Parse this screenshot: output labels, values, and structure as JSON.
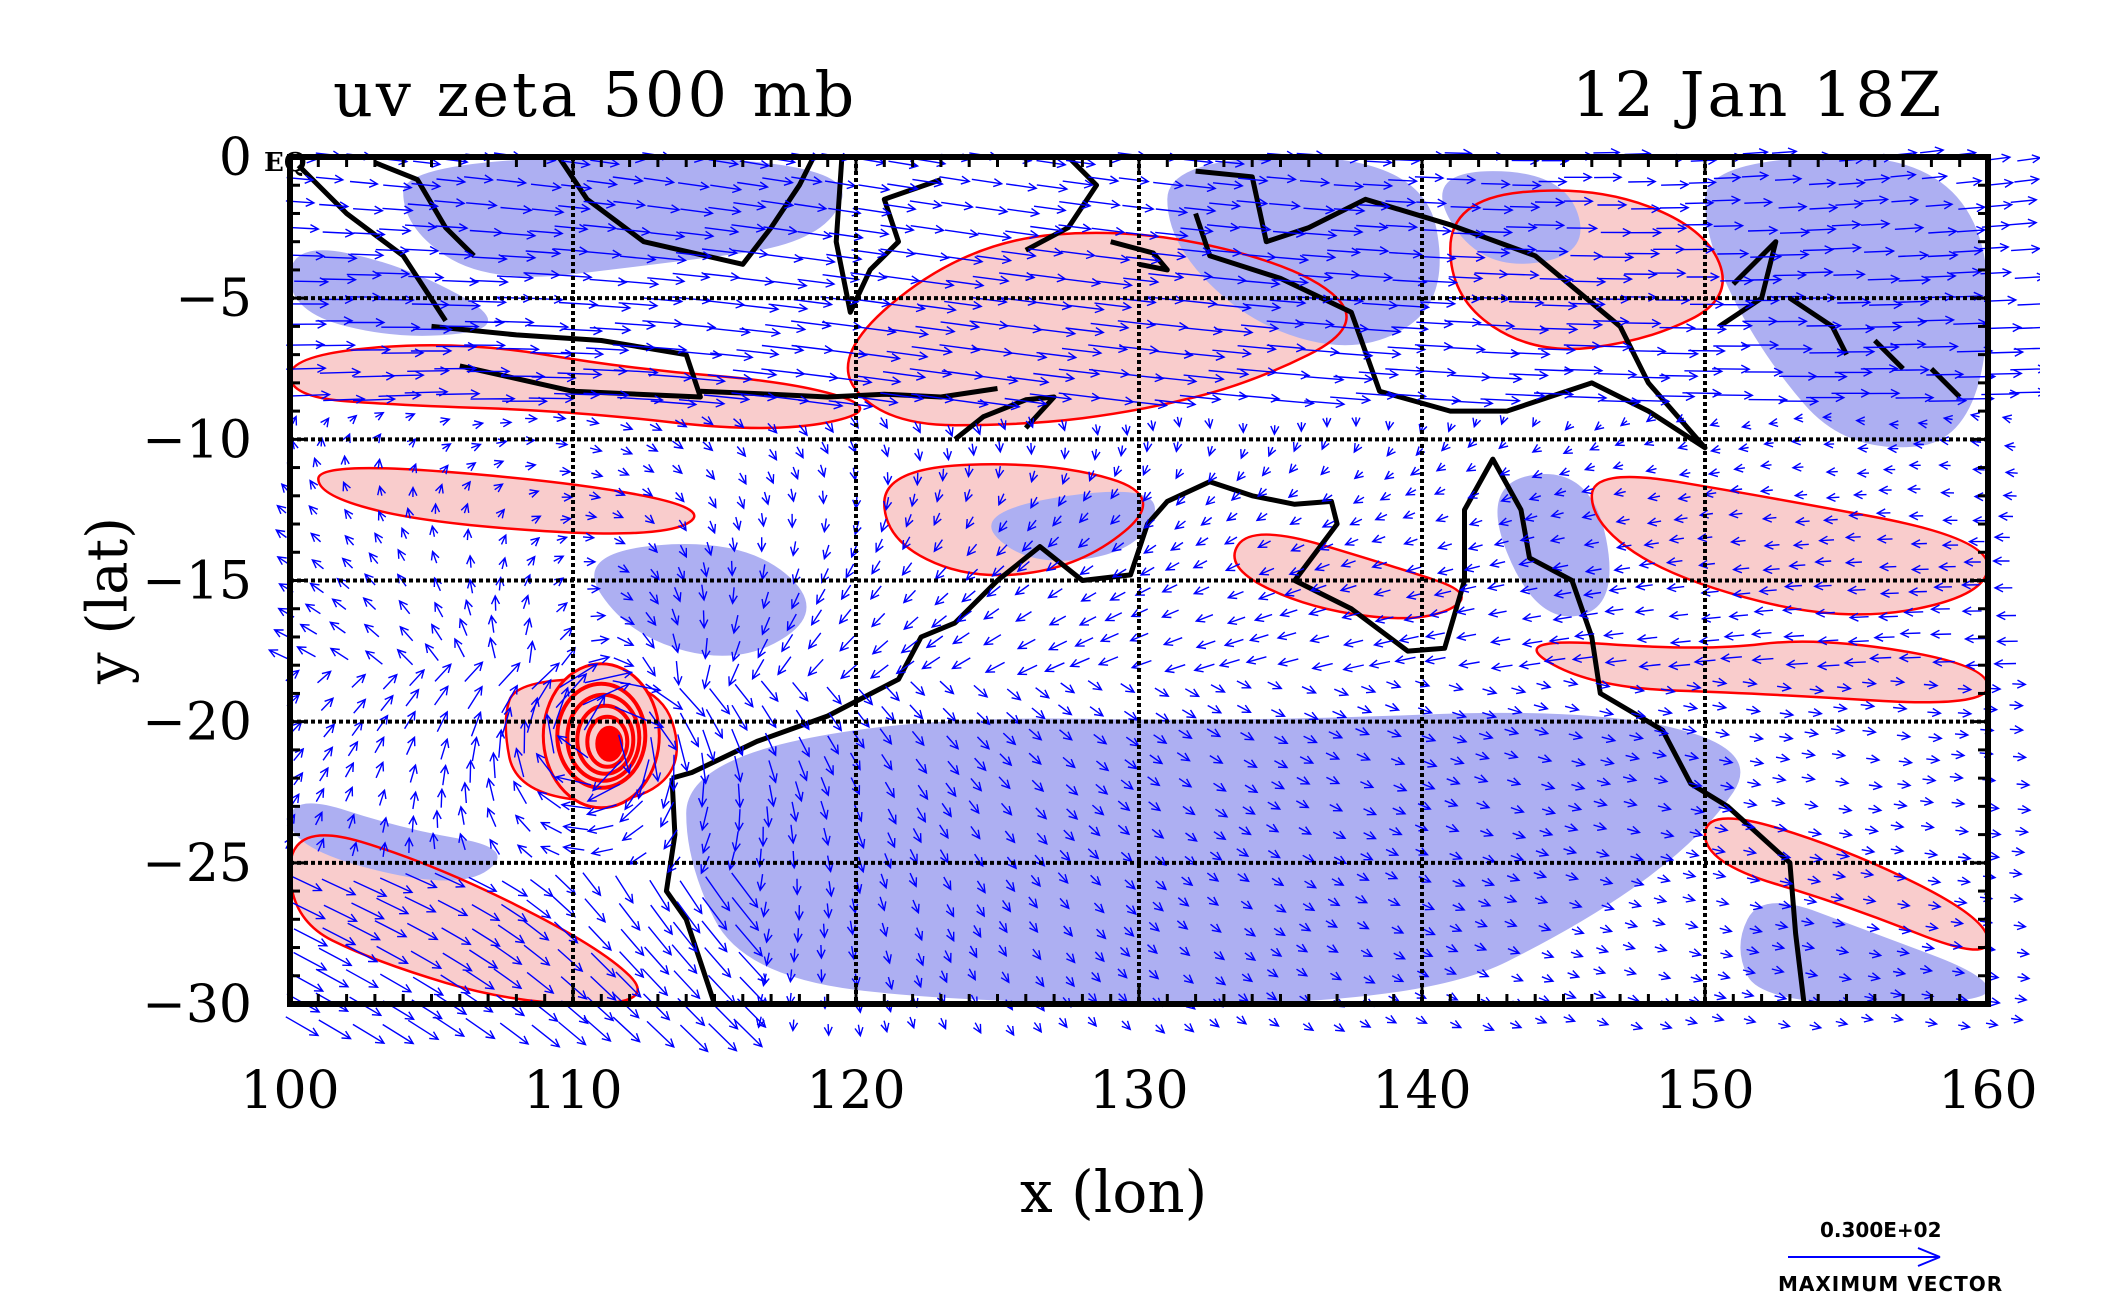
{
  "title_left": "uv zeta 500 mb",
  "title_right": "12 Jan 18Z",
  "equator_label": "EQ",
  "legend": {
    "magnitude_text": "0.300E+02",
    "label_text": "MAXIMUM VECTOR"
  },
  "colors": {
    "positive_fill": "#f9cccc",
    "negative_fill": "#adaff2",
    "contour": "#ff0000",
    "vector": "#0000ff",
    "coast": "#000000"
  },
  "chart_data": {
    "type": "map",
    "xlabel": "x (lon)",
    "ylabel": "y (lat)",
    "xlim": [
      100,
      160
    ],
    "ylim": [
      -30,
      0
    ],
    "x_ticks": [
      100,
      110,
      120,
      130,
      140,
      150,
      160
    ],
    "y_ticks": [
      0,
      -5,
      -10,
      -15,
      -20,
      -25,
      -30
    ],
    "x_tick_labels": [
      "100",
      "110",
      "120",
      "130",
      "140",
      "150",
      "160"
    ],
    "y_tick_labels": [
      "0",
      "−5",
      "−10",
      "−15",
      "−20",
      "−25",
      "−30"
    ],
    "grid": true,
    "positive_regions": [
      [
        [
          100,
          -7
        ],
        [
          106,
          -6.5
        ],
        [
          112,
          -7.5
        ],
        [
          118,
          -8
        ],
        [
          121,
          -9
        ],
        [
          117,
          -9.8
        ],
        [
          110,
          -9
        ],
        [
          104,
          -8.8
        ],
        [
          100,
          -8.5
        ]
      ],
      [
        [
          119,
          -7
        ],
        [
          124,
          -3
        ],
        [
          130,
          -2.5
        ],
        [
          136,
          -4
        ],
        [
          138,
          -6
        ],
        [
          134,
          -8
        ],
        [
          130,
          -9
        ],
        [
          126,
          -9.5
        ],
        [
          121,
          -9.5
        ]
      ],
      [
        [
          141,
          -1.5
        ],
        [
          146,
          -1
        ],
        [
          150,
          -2.5
        ],
        [
          151,
          -5
        ],
        [
          148,
          -6.5
        ],
        [
          144,
          -7
        ],
        [
          141,
          -5
        ]
      ],
      [
        [
          101,
          -10.8
        ],
        [
          110,
          -11.5
        ],
        [
          115,
          -12.5
        ],
        [
          113,
          -13.5
        ],
        [
          105,
          -13
        ],
        [
          101,
          -12
        ]
      ],
      [
        [
          121,
          -11
        ],
        [
          127,
          -10.8
        ],
        [
          131,
          -12
        ],
        [
          128,
          -14.5
        ],
        [
          124,
          -15
        ],
        [
          121,
          -13.5
        ]
      ],
      [
        [
          134,
          -13
        ],
        [
          139,
          -14.5
        ],
        [
          142,
          -15.5
        ],
        [
          140,
          -16.5
        ],
        [
          136,
          -16
        ],
        [
          133,
          -14.5
        ]
      ],
      [
        [
          146,
          -11
        ],
        [
          152,
          -12
        ],
        [
          160,
          -13.5
        ],
        [
          160,
          -15.5
        ],
        [
          155,
          -16.5
        ],
        [
          149,
          -15
        ],
        [
          146,
          -13
        ]
      ],
      [
        [
          143,
          -17
        ],
        [
          150,
          -17.5
        ],
        [
          154,
          -17
        ],
        [
          160,
          -18
        ],
        [
          160,
          -19.5
        ],
        [
          152,
          -19
        ],
        [
          146,
          -18.8
        ]
      ],
      [
        [
          108,
          -18.5
        ],
        [
          113,
          -18.5
        ],
        [
          114,
          -21.5
        ],
        [
          112,
          -23
        ],
        [
          108,
          -22.5
        ],
        [
          107.5,
          -20
        ]
      ],
      [
        [
          100,
          -23.5
        ],
        [
          105,
          -25
        ],
        [
          111,
          -28
        ],
        [
          113,
          -30
        ],
        [
          108,
          -30
        ],
        [
          103,
          -28.5
        ],
        [
          100,
          -27
        ]
      ],
      [
        [
          150,
          -23
        ],
        [
          155,
          -24.5
        ],
        [
          160,
          -27
        ],
        [
          160,
          -28.5
        ],
        [
          155,
          -26.5
        ],
        [
          150,
          -25
        ]
      ]
    ],
    "negative_regions": [
      [
        [
          104,
          0
        ],
        [
          120,
          0
        ],
        [
          119,
          -3
        ],
        [
          113,
          -3.8
        ],
        [
          107,
          -4.5
        ],
        [
          104,
          -2.5
        ]
      ],
      [
        [
          100,
          -3
        ],
        [
          104,
          -3.8
        ],
        [
          108,
          -6
        ],
        [
          104,
          -6.5
        ],
        [
          100,
          -5.5
        ]
      ],
      [
        [
          131,
          0
        ],
        [
          140,
          0
        ],
        [
          141,
          -5
        ],
        [
          138,
          -7
        ],
        [
          134,
          -6
        ],
        [
          131,
          -3
        ]
      ],
      [
        [
          140,
          -0.5
        ],
        [
          145,
          -0.5
        ],
        [
          146,
          -3.5
        ],
        [
          142,
          -4
        ]
      ],
      [
        [
          150,
          0
        ],
        [
          160,
          0
        ],
        [
          160,
          -10
        ],
        [
          155,
          -10.5
        ],
        [
          152,
          -7
        ],
        [
          150,
          -3
        ]
      ],
      [
        [
          110,
          -14
        ],
        [
          116,
          -13.5
        ],
        [
          119,
          -16
        ],
        [
          116,
          -18
        ],
        [
          112,
          -17
        ]
      ],
      [
        [
          124,
          -12.5
        ],
        [
          131,
          -11.5
        ],
        [
          130,
          -14
        ],
        [
          126,
          -14.5
        ]
      ],
      [
        [
          142,
          -11.5
        ],
        [
          146,
          -11
        ],
        [
          147,
          -16
        ],
        [
          144,
          -16.5
        ]
      ],
      [
        [
          114,
          -21.5
        ],
        [
          122,
          -19.8
        ],
        [
          134,
          -20
        ],
        [
          146,
          -19.5
        ],
        [
          152,
          -21
        ],
        [
          150,
          -24
        ],
        [
          146,
          -27
        ],
        [
          140,
          -30
        ],
        [
          124,
          -30
        ],
        [
          116,
          -29
        ],
        [
          114,
          -25
        ]
      ],
      [
        [
          152,
          -26
        ],
        [
          156,
          -27.5
        ],
        [
          160,
          -29
        ],
        [
          160,
          -30
        ],
        [
          152,
          -30
        ],
        [
          151,
          -28
        ]
      ],
      [
        [
          100,
          -22.5
        ],
        [
          104,
          -23.8
        ],
        [
          108,
          -24.5
        ],
        [
          106,
          -26
        ],
        [
          100,
          -24.5
        ]
      ]
    ],
    "vortex_center": [
      111,
      -20.5
    ],
    "vortex_rings": 5,
    "vector_max": "0.300E+02"
  }
}
